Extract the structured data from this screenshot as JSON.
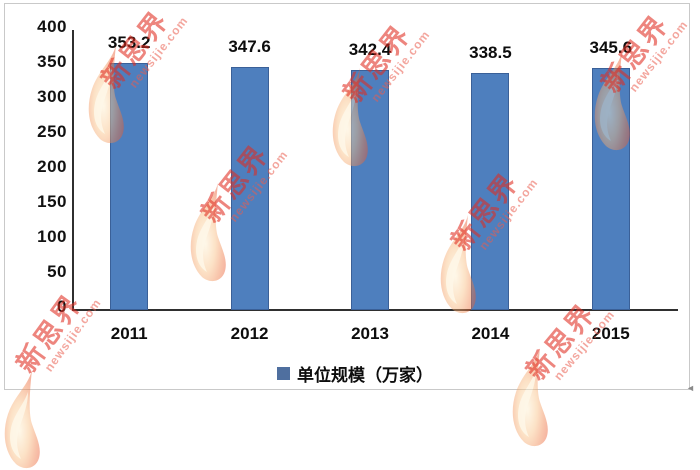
{
  "chart_data": {
    "type": "bar",
    "categories": [
      "2011",
      "2012",
      "2013",
      "2014",
      "2015"
    ],
    "values": [
      353.2,
      347.6,
      342.4,
      338.5,
      345.6
    ],
    "value_labels": [
      "353.2",
      "347.6",
      "342.4",
      "338.5",
      "345.6"
    ],
    "series_name": "单位规模（万家）",
    "title": "",
    "xlabel": "",
    "ylabel": "",
    "ylim": [
      0,
      400
    ],
    "ytick_step": 50,
    "ytick_labels": [
      "400",
      "350",
      "300",
      "250",
      "200",
      "150",
      "100",
      "50",
      "0"
    ],
    "grid": false,
    "legend_position": "bottom",
    "bar_color": "#4e7fbe",
    "bar_border_color": "#3a6098",
    "axis_color": "#2f2f2f",
    "text_color": "#0d0d0d"
  },
  "legend": {
    "marker_color": "#4f6f9f",
    "label": "单位规模（万家）"
  },
  "watermark": {
    "brand": "新思界",
    "domain": "newsijie.com",
    "brand_color": "#e02c20",
    "flame_inner_color": "#fdf0cf",
    "flame_mid_color": "#fac083",
    "flame_outer_color": "#ec5b30"
  },
  "misc": {
    "scroll_arrow": "◄"
  }
}
